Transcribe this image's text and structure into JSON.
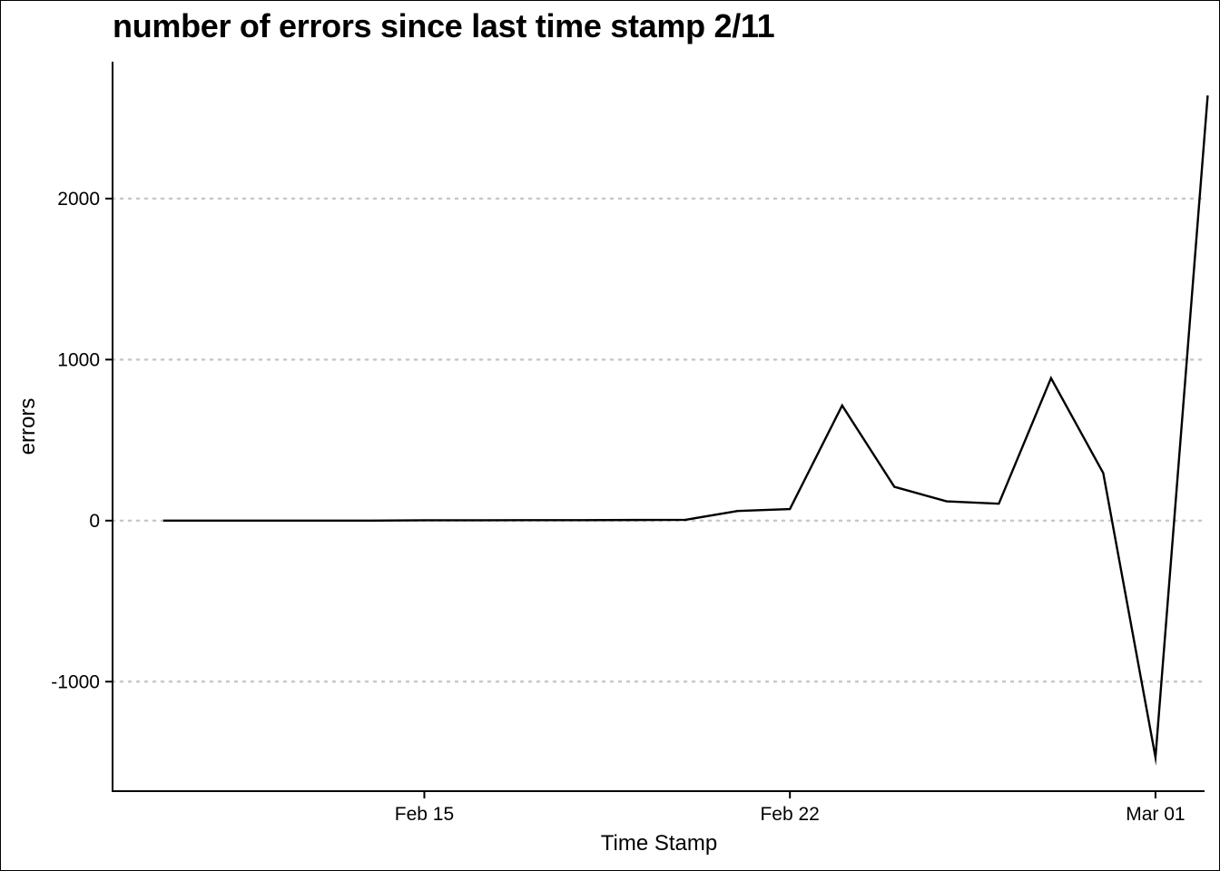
{
  "chart_data": {
    "type": "line",
    "title": "number of errors since last time stamp 2/11",
    "xlabel": "Time Stamp",
    "ylabel": "errors",
    "x_ticks": [
      {
        "day": 14,
        "label": "Feb 15"
      },
      {
        "day": 21,
        "label": "Feb 22"
      },
      {
        "day": 28,
        "label": "Mar 01"
      }
    ],
    "y_ticks": [
      -1000,
      0,
      1000,
      2000
    ],
    "xlim": [
      8.03,
      28.94
    ],
    "ylim": [
      -1680,
      2850
    ],
    "grid": "horizontal dotted",
    "series": [
      {
        "name": "errors",
        "color": "#000000",
        "x_day": [
          9,
          10,
          11,
          12,
          13,
          14,
          15,
          16,
          17,
          18,
          19,
          20,
          21,
          22,
          23,
          24,
          25,
          26,
          27,
          28,
          29
        ],
        "x_labels": [
          "Feb 10",
          "Feb 11",
          "Feb 12",
          "Feb 13",
          "Feb 14",
          "Feb 15",
          "Feb 16",
          "Feb 17",
          "Feb 18",
          "Feb 19",
          "Feb 20",
          "Feb 21",
          "Feb 22",
          "Feb 23",
          "Feb 24",
          "Feb 25",
          "Feb 26",
          "Feb 27",
          "Feb 28",
          "Mar 01",
          "Mar 02"
        ],
        "values": [
          0,
          0,
          0,
          0,
          0,
          2,
          2,
          3,
          3,
          4,
          5,
          60,
          72,
          715,
          210,
          120,
          105,
          885,
          295,
          -1470,
          2640
        ]
      }
    ]
  }
}
